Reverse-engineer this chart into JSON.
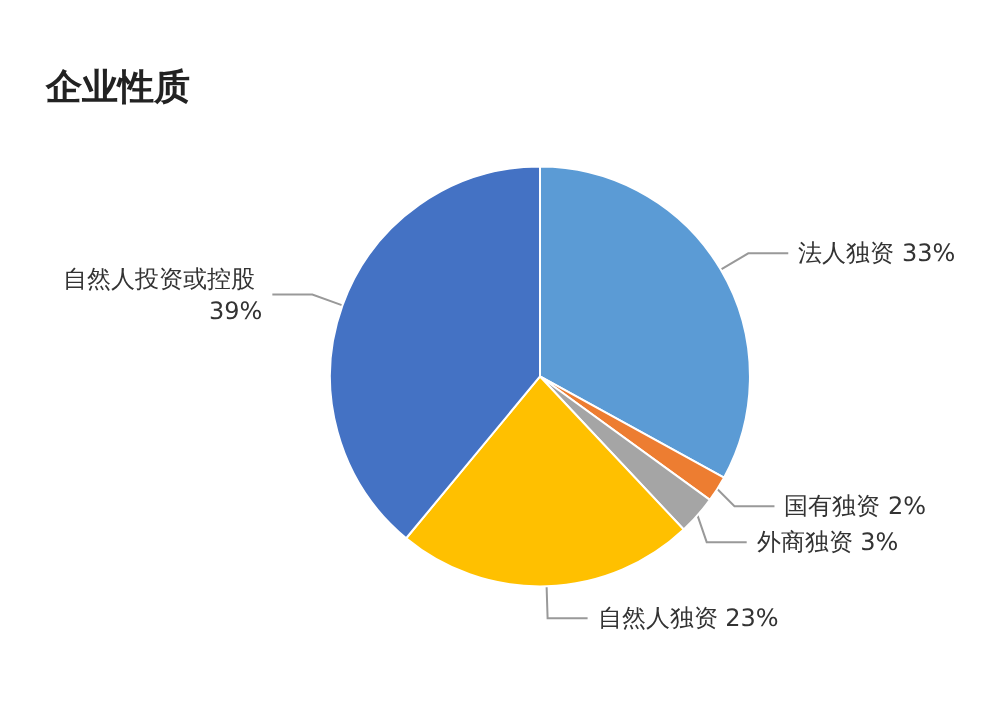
{
  "chart_data": {
    "type": "pie",
    "title": "企业性质",
    "categories": [
      "法人独资",
      "国有独资",
      "外商独资",
      "自然人独资",
      "自然人投资或控股"
    ],
    "values": [
      33,
      2,
      3,
      23,
      39
    ],
    "colors": [
      "#5b9bd5",
      "#ed7d31",
      "#a5a5a5",
      "#ffc000",
      "#4472c4"
    ],
    "value_labels": [
      "33%",
      "2%",
      "3%",
      "23%",
      "39%"
    ],
    "legend": false
  }
}
